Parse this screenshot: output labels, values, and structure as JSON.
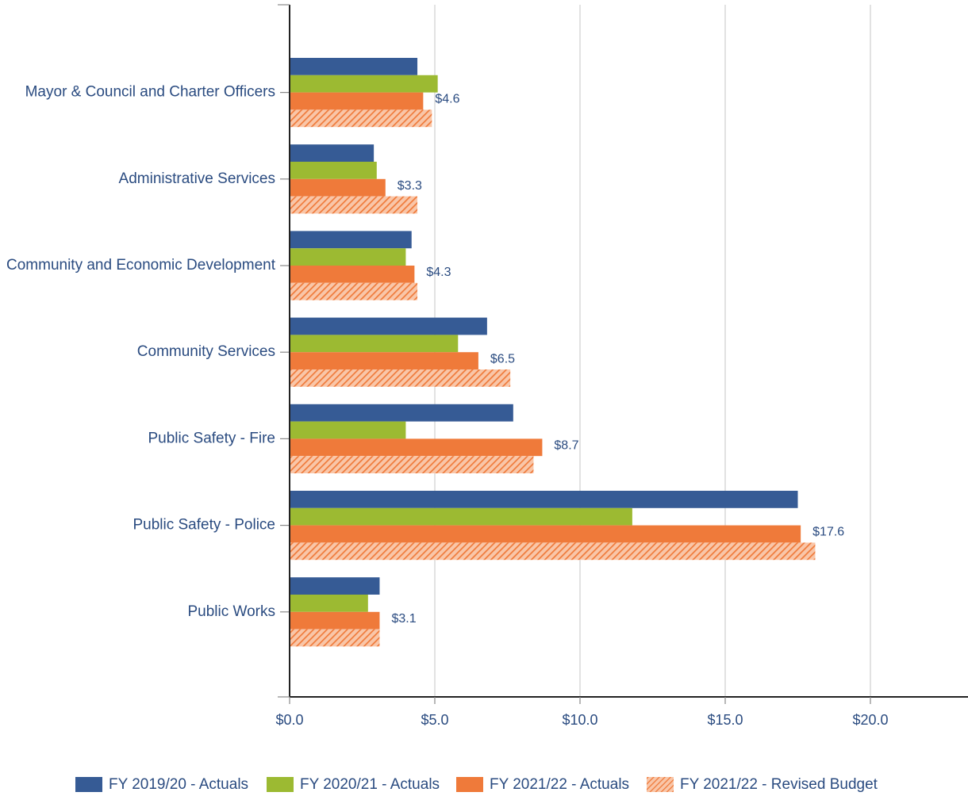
{
  "chart_data": {
    "type": "bar",
    "orientation": "horizontal",
    "categories": [
      "Mayor & Council and Charter Officers",
      "Administrative Services",
      "Community and Economic Development",
      "Community Services",
      "Public Safety - Fire",
      "Public Safety - Police",
      "Public Works"
    ],
    "series": [
      {
        "name": "FY 2019/20 - Actuals",
        "color": "#365b95",
        "pattern": "solid",
        "values": [
          4.4,
          2.9,
          4.2,
          6.8,
          7.7,
          17.5,
          3.1
        ]
      },
      {
        "name": "FY 2020/21 - Actuals",
        "color": "#9cba32",
        "pattern": "solid",
        "values": [
          5.1,
          3.0,
          4.0,
          5.8,
          4.0,
          11.8,
          2.7
        ]
      },
      {
        "name": "FY 2021/22 - Actuals",
        "color": "#ef7a3a",
        "pattern": "solid",
        "values": [
          4.6,
          3.3,
          4.3,
          6.5,
          8.7,
          17.6,
          3.1
        ]
      },
      {
        "name": "FY 2021/22 - Revised Budget",
        "color": "#ef7a3a",
        "pattern": "hatched",
        "values": [
          4.9,
          4.4,
          4.4,
          7.6,
          8.4,
          18.1,
          3.1
        ]
      }
    ],
    "data_labels": [
      "$4.6",
      "$3.3",
      "$4.3",
      "$6.5",
      "$8.7",
      "$17.6",
      "$3.1"
    ],
    "data_label_series": 2,
    "x_ticks": [
      0,
      5,
      10,
      15,
      20
    ],
    "x_tick_labels": [
      "$0.0",
      "$5.0",
      "$10.0",
      "$15.0",
      "$20.0"
    ],
    "xlim": [
      0,
      23.5
    ],
    "grid": true,
    "legend_position": "bottom",
    "title": "",
    "xlabel": "",
    "ylabel": ""
  }
}
